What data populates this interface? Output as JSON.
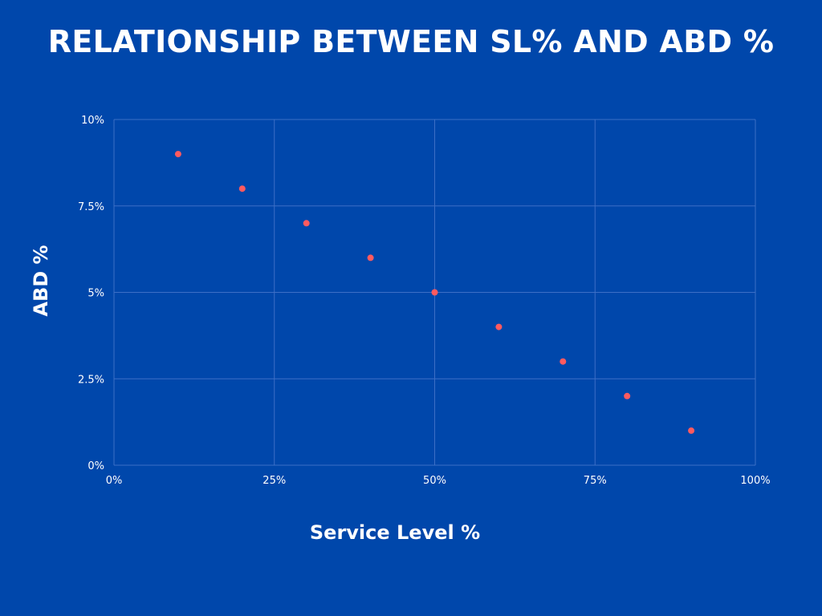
{
  "chart_data": {
    "type": "scatter",
    "title": "RELATIONSHIP BETWEEN SL% AND ABD %",
    "xlabel": "Service Level %",
    "ylabel": "ABD %",
    "x": [
      10,
      20,
      30,
      40,
      50,
      60,
      70,
      80,
      90
    ],
    "y": [
      9,
      8,
      7,
      6,
      5,
      4,
      3,
      2,
      1
    ],
    "xlim": [
      0,
      100
    ],
    "ylim": [
      0,
      10
    ],
    "x_ticks": [
      0,
      25,
      50,
      75,
      100
    ],
    "x_tick_labels": [
      "0%",
      "25%",
      "50%",
      "75%",
      "100%"
    ],
    "y_ticks": [
      0,
      2.5,
      5,
      7.5,
      10
    ],
    "y_tick_labels": [
      "0%",
      "2.5%",
      "5%",
      "7.5%",
      "10%"
    ],
    "grid": true,
    "legend": "none",
    "colors": {
      "background": "#0047AB",
      "point": "#FF5A5F",
      "grid": "#3D6FC6",
      "text": "#FFFFFF"
    }
  }
}
